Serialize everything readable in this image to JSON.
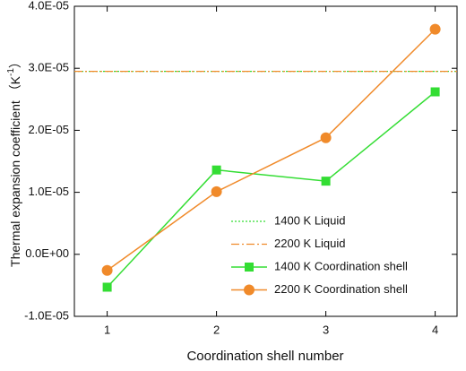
{
  "chart_data": {
    "type": "line",
    "xlabel": "Coordination shell number",
    "ylabel": "Thermal expansion coefficient （K",
    "ylabel_sup": "-1",
    "ylabel_end": "）",
    "x": [
      1,
      2,
      3,
      4
    ],
    "xlim": [
      0.7,
      4.2
    ],
    "xticks": [
      1,
      2,
      3,
      4
    ],
    "ylim": [
      -1e-05,
      4e-05
    ],
    "yticks": [
      {
        "value": -1e-05,
        "label": "-1.0E-05"
      },
      {
        "value": 0,
        "label": "0.0E+00"
      },
      {
        "value": 1e-05,
        "label": "1.0E-05"
      },
      {
        "value": 2e-05,
        "label": "2.0E-05"
      },
      {
        "value": 3e-05,
        "label": "3.0E-05"
      },
      {
        "value": 4e-05,
        "label": "4.0E-05"
      }
    ],
    "hlines": [
      {
        "name": "1400 K Liquid",
        "color": "#33dd33",
        "style": "dotted",
        "value": 2.95e-05
      },
      {
        "name": "2200 K Liquid",
        "color": "#f08a2a",
        "style": "dashed",
        "value": 2.95e-05
      }
    ],
    "series": [
      {
        "name": "1400 K Coordination shell",
        "color": "#33dd33",
        "marker": "square",
        "values": [
          -5.3e-06,
          1.36e-05,
          1.18e-05,
          2.62e-05
        ]
      },
      {
        "name": "2200 K Coordination shell",
        "color": "#f08a2a",
        "marker": "circle",
        "values": [
          -2.6e-06,
          1.01e-05,
          1.88e-05,
          3.63e-05
        ]
      }
    ],
    "grid": false,
    "legend": "lower right"
  }
}
